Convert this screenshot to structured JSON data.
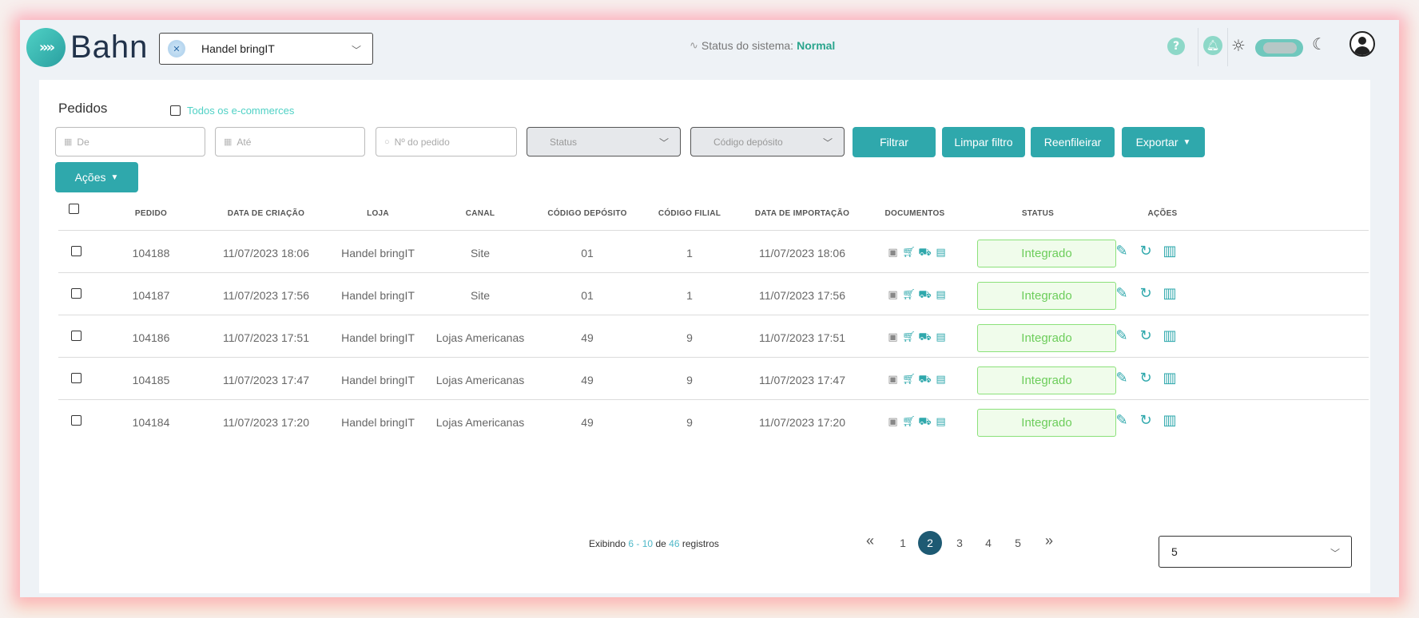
{
  "header": {
    "logo_text": "Bahn",
    "store_select": {
      "value": "Handel bringIT",
      "icon": "x-logo"
    },
    "system_status": {
      "label": "Status do sistema:",
      "value": "Normal"
    }
  },
  "page": {
    "title": "Pedidos",
    "all_ecommerce_label": "Todos os e-commerces"
  },
  "filters": {
    "from_placeholder": "De",
    "to_placeholder": "Até",
    "order_placeholder": "Nº do pedido",
    "status_placeholder": "Status",
    "deposit_placeholder": "Código depósito"
  },
  "buttons": {
    "filter": "Filtrar",
    "clear": "Limpar filtro",
    "requeue": "Reenfileirar",
    "export": "Exportar",
    "actions": "Ações"
  },
  "table": {
    "columns": [
      "PEDIDO",
      "DATA DE CRIAÇÃO",
      "LOJA",
      "CANAL",
      "CÓDIGO DEPÓSITO",
      "CÓDIGO FILIAL",
      "DATA DE IMPORTAÇÃO",
      "DOCUMENTOS",
      "STATUS",
      "AÇÕES"
    ],
    "rows": [
      {
        "pedido": "104188",
        "criacao": "11/07/2023 18:06",
        "loja": "Handel bringIT",
        "canal": "Site",
        "deposito": "01",
        "filial": "1",
        "importacao": "11/07/2023 18:06",
        "status": "Integrado"
      },
      {
        "pedido": "104187",
        "criacao": "11/07/2023 17:56",
        "loja": "Handel bringIT",
        "canal": "Site",
        "deposito": "01",
        "filial": "1",
        "importacao": "11/07/2023 17:56",
        "status": "Integrado"
      },
      {
        "pedido": "104186",
        "criacao": "11/07/2023 17:51",
        "loja": "Handel bringIT",
        "canal": "Lojas Americanas",
        "deposito": "49",
        "filial": "9",
        "importacao": "11/07/2023 17:51",
        "status": "Integrado"
      },
      {
        "pedido": "104185",
        "criacao": "11/07/2023 17:47",
        "loja": "Handel bringIT",
        "canal": "Lojas Americanas",
        "deposito": "49",
        "filial": "9",
        "importacao": "11/07/2023 17:47",
        "status": "Integrado"
      },
      {
        "pedido": "104184",
        "criacao": "11/07/2023 17:20",
        "loja": "Handel bringIT",
        "canal": "Lojas Americanas",
        "deposito": "49",
        "filial": "9",
        "importacao": "11/07/2023 17:20",
        "status": "Integrado"
      }
    ],
    "document_icons": [
      "box-icon",
      "cart-icon",
      "truck-icon",
      "invoice-icon"
    ],
    "action_icons": [
      "edit-icon",
      "refresh-icon",
      "clipboard-icon"
    ]
  },
  "pagination": {
    "showing": "Exibindo",
    "from": "6",
    "dash": "-",
    "to": "10",
    "of": "de",
    "total": "46",
    "records": "registros",
    "pages": [
      "1",
      "2",
      "3",
      "4",
      "5"
    ],
    "current": "2",
    "per_page": "5"
  },
  "colors": {
    "accent": "#2fa8ac",
    "status_ok": "#2aa58d",
    "integrated_border": "#8be17a",
    "integrated_text": "#6ccd5a",
    "active_page": "#1e5a73"
  }
}
